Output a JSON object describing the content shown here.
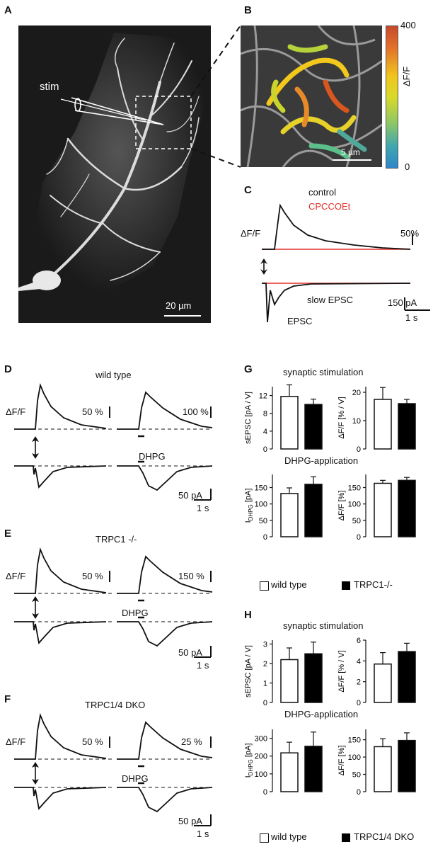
{
  "panel_labels": {
    "A": "A",
    "B": "B",
    "C": "C",
    "D": "D",
    "E": "E",
    "F": "F",
    "G": "G",
    "H": "H"
  },
  "panel_a": {
    "stim_label": "stim",
    "scale_bar": "20 µm"
  },
  "panel_b": {
    "scale_bar": "5 µm",
    "colorbar": {
      "max": "400",
      "min": "0",
      "label": "ΔF/F"
    }
  },
  "panel_c": {
    "legend_control": "control",
    "legend_drug": "CPCCOEt",
    "y_label": "ΔF/F",
    "scale_pct": "50%",
    "slow_epsc": "slow EPSC",
    "epsc": "EPSC",
    "scale_pa": "150 pA",
    "scale_s": "1 s",
    "colors": {
      "control": "#111111",
      "drug": "#e0302a"
    }
  },
  "panel_d": {
    "title": "wild type",
    "y_label": "ΔF/F",
    "scale_left": "50 %",
    "scale_right": "100 %",
    "dhpg": "DHPG",
    "scale_pa": "50 pA",
    "scale_s": "1 s"
  },
  "panel_e": {
    "title": "TRPC1 -/-",
    "y_label": "ΔF/F",
    "scale_left": "50 %",
    "scale_right": "150 %",
    "dhpg": "DHPG",
    "scale_pa": "50 pA",
    "scale_s": "1 s"
  },
  "panel_f": {
    "title": "TRPC1/4 DKO",
    "y_label": "ΔF/F",
    "scale_left": "50 %",
    "scale_right": "25 %",
    "dhpg": "DHPG",
    "scale_pa": "50 pA",
    "scale_s": "1 s"
  },
  "panel_g": {
    "title_top": "synaptic stimulation",
    "title_bottom": "DHPG-application",
    "legend": {
      "wt": "wild type",
      "ko": "TRPC1-/-"
    }
  },
  "panel_h": {
    "title_top": "synaptic stimulation",
    "title_bottom": "DHPG-application",
    "legend": {
      "wt": "wild type",
      "ko": "TRPC1/4 DKO"
    }
  },
  "chart_data": [
    {
      "id": "G1",
      "type": "bar",
      "categories": [
        "wild type",
        "TRPC1-/-"
      ],
      "values": [
        11.8,
        10.0
      ],
      "errors": [
        2.6,
        1.2
      ],
      "ylabel": "sEPSC [pA / V]",
      "ylim": [
        0,
        14
      ],
      "ticks": [
        0,
        4,
        8,
        12
      ],
      "colors": [
        "#ffffff",
        "#000000"
      ]
    },
    {
      "id": "G2",
      "type": "bar",
      "categories": [
        "wild type",
        "TRPC1-/-"
      ],
      "values": [
        17.5,
        16.0
      ],
      "errors": [
        4.2,
        1.5
      ],
      "ylabel": "ΔF/F [% / V]",
      "ylim": [
        0,
        22
      ],
      "ticks": [
        0,
        10,
        20
      ],
      "colors": [
        "#ffffff",
        "#000000"
      ]
    },
    {
      "id": "G3",
      "type": "bar",
      "categories": [
        "wild type",
        "TRPC1-/-"
      ],
      "values": [
        132,
        160
      ],
      "errors": [
        17,
        23
      ],
      "ylabel": "I_DHPG [pA]",
      "ylim": [
        0,
        190
      ],
      "ticks": [
        0,
        50,
        100,
        150
      ],
      "colors": [
        "#ffffff",
        "#000000"
      ]
    },
    {
      "id": "G4",
      "type": "bar",
      "categories": [
        "wild type",
        "TRPC1-/-"
      ],
      "values": [
        163,
        172
      ],
      "errors": [
        9,
        9
      ],
      "ylabel": "ΔF/F [%]",
      "ylim": [
        0,
        190
      ],
      "ticks": [
        0,
        50,
        100,
        150
      ],
      "colors": [
        "#ffffff",
        "#000000"
      ]
    },
    {
      "id": "H1",
      "type": "bar",
      "categories": [
        "wild type",
        "TRPC1/4 DKO"
      ],
      "values": [
        2.2,
        2.5
      ],
      "errors": [
        0.6,
        0.6
      ],
      "ylabel": "sEPSC [pA / V]",
      "ylim": [
        0,
        3.2
      ],
      "ticks": [
        0,
        1,
        2,
        3
      ],
      "colors": [
        "#ffffff",
        "#000000"
      ]
    },
    {
      "id": "H2",
      "type": "bar",
      "categories": [
        "wild type",
        "TRPC1/4 DKO"
      ],
      "values": [
        3.7,
        4.9
      ],
      "errors": [
        1.1,
        0.8
      ],
      "ylabel": "ΔF/F [% / V]",
      "ylim": [
        0,
        6
      ],
      "ticks": [
        0,
        2,
        4,
        6
      ],
      "colors": [
        "#ffffff",
        "#000000"
      ]
    },
    {
      "id": "H3",
      "type": "bar",
      "categories": [
        "wild type",
        "TRPC1/4 DKO"
      ],
      "values": [
        218,
        255
      ],
      "errors": [
        60,
        80
      ],
      "ylabel": "I_DHPG [pA]",
      "ylim": [
        0,
        350
      ],
      "ticks": [
        0,
        100,
        200,
        300
      ],
      "colors": [
        "#ffffff",
        "#000000"
      ]
    },
    {
      "id": "H4",
      "type": "bar",
      "categories": [
        "wild type",
        "TRPC1/4 DKO"
      ],
      "values": [
        130,
        148
      ],
      "errors": [
        23,
        22
      ],
      "ylabel": "ΔF/F [%]",
      "ylim": [
        0,
        180
      ],
      "ticks": [
        0,
        50,
        100,
        150
      ],
      "colors": [
        "#ffffff",
        "#000000"
      ]
    }
  ]
}
